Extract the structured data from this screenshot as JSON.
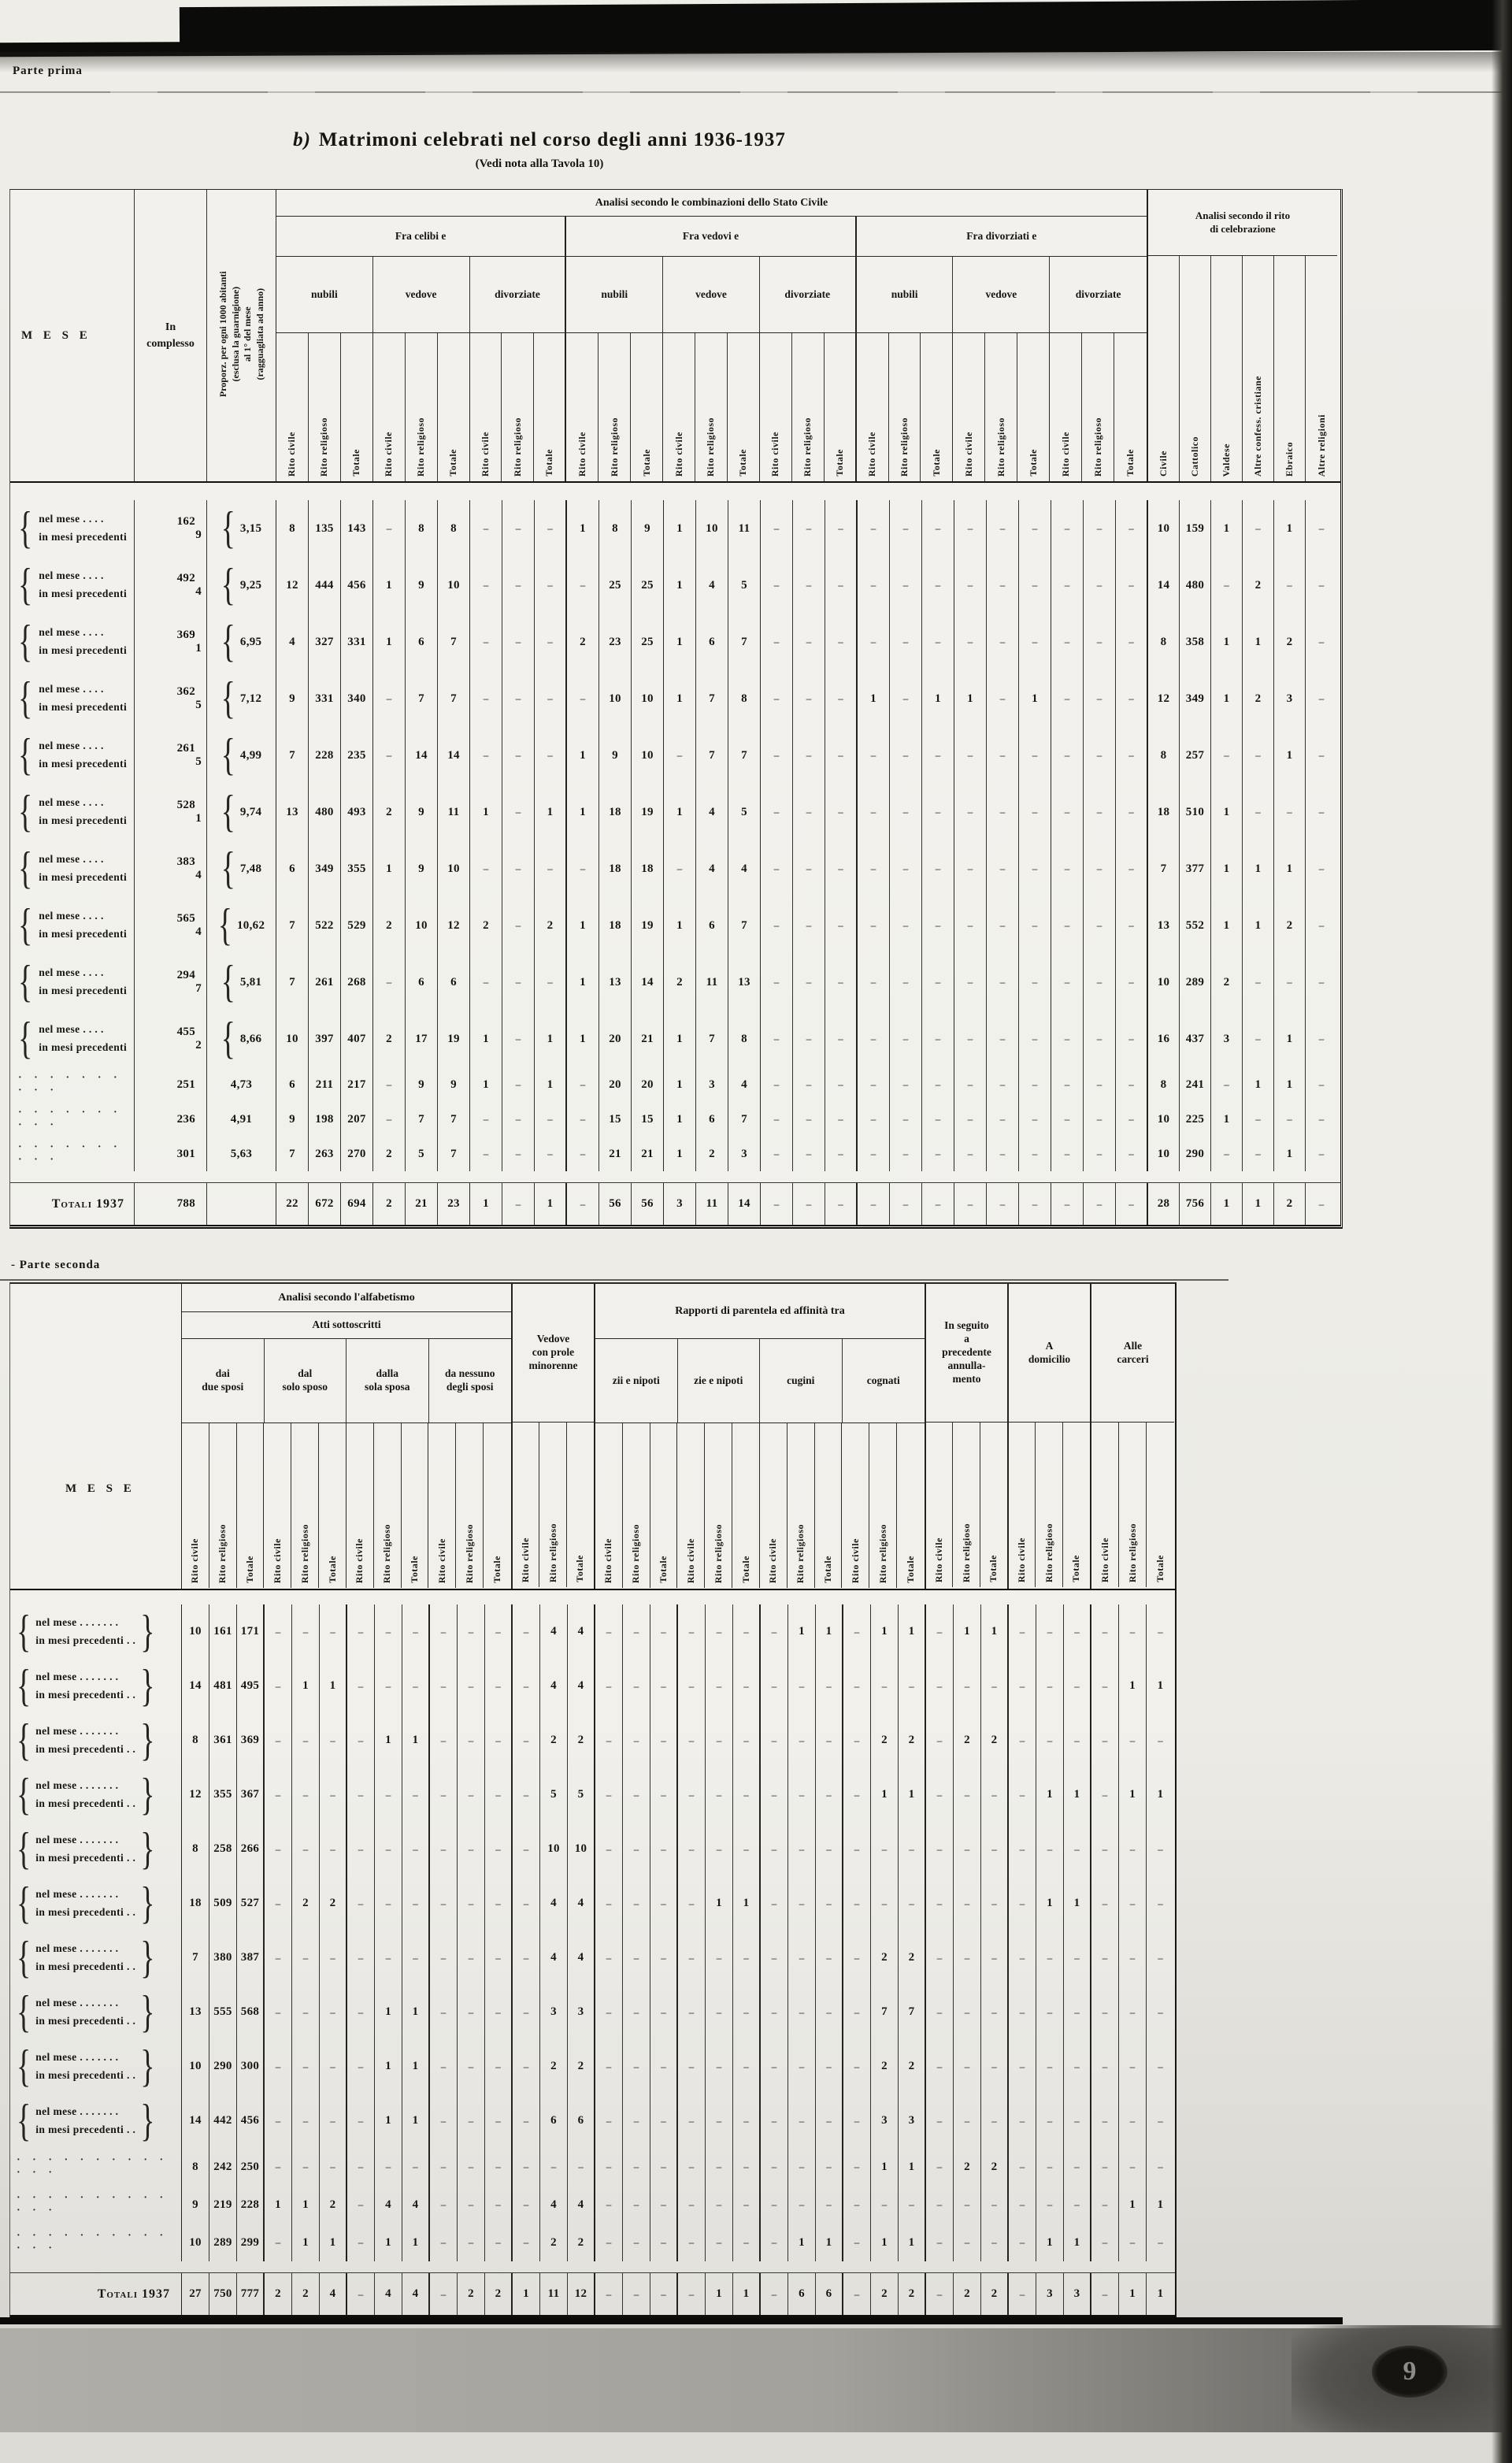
{
  "page": {
    "section_top": "Parte prima",
    "section_mid": "- Parte seconda",
    "title_prefix": "b)",
    "title_main": "Matrimoni celebrati nel corso degli anni 1936-1937",
    "subtitle": "(Vedi nota alla Tavola 10)",
    "page_number": "9"
  },
  "table1": {
    "mese_header": "M E S E",
    "complesso_header": "In\ncomplesso",
    "proporz_header": [
      "Proporz. per ogni 1000 abitanti",
      "(esclusa la guarnigione)",
      "al 1° del mese",
      "(ragguagliata ad anno)"
    ],
    "stato_title": "Analisi secondo le combinazioni dello Stato Civile",
    "stato_groups": [
      "Fra celibi e",
      "Fra vedovi e",
      "Fra divorziati e"
    ],
    "stato_subgroups": [
      "nubili",
      "vedove",
      "divorziate"
    ],
    "rite_columns": [
      "Rito civile",
      "Rito religioso",
      "Totale"
    ],
    "rito_title": "Analisi secondo il rito\ndi celebrazione",
    "rito_columns": [
      "Civile",
      "Cattolico",
      "Valdese",
      "Altre confess. cristiane",
      "Ebraico",
      "Altre religioni"
    ],
    "row_label_line1": "nel mese  .  .  .  .",
    "row_label_line2": "in mesi precedenti",
    "dotted_label": "· · · · · · · · · ·",
    "total_label": "Totali 1937",
    "rows": [
      {
        "complesso": [
          "162",
          "9"
        ],
        "prop": "3,15",
        "cells": [
          "8",
          "135",
          "143",
          "-",
          "8",
          "8",
          "-",
          "-",
          "-",
          "1",
          "8",
          "9",
          "1",
          "10",
          "11",
          "-",
          "-",
          "-",
          "-",
          "-",
          "-",
          "-",
          "-",
          "-",
          "-",
          "-",
          "-"
        ],
        "rito": [
          "10",
          "159",
          "1",
          "-",
          "1",
          "-"
        ]
      },
      {
        "complesso": [
          "492",
          "4"
        ],
        "prop": "9,25",
        "cells": [
          "12",
          "444",
          "456",
          "1",
          "9",
          "10",
          "-",
          "-",
          "-",
          "-",
          "25",
          "25",
          "1",
          "4",
          "5",
          "-",
          "-",
          "-",
          "-",
          "-",
          "-",
          "-",
          "-",
          "-",
          "-",
          "-",
          "-"
        ],
        "rito": [
          "14",
          "480",
          "-",
          "2",
          "-",
          "-"
        ]
      },
      {
        "complesso": [
          "369",
          "1"
        ],
        "prop": "6,95",
        "cells": [
          "4",
          "327",
          "331",
          "1",
          "6",
          "7",
          "-",
          "-",
          "-",
          "2",
          "23",
          "25",
          "1",
          "6",
          "7",
          "-",
          "-",
          "-",
          "-",
          "-",
          "-",
          "-",
          "-",
          "-",
          "-",
          "-",
          "-"
        ],
        "rito": [
          "8",
          "358",
          "1",
          "1",
          "2",
          "-"
        ]
      },
      {
        "complesso": [
          "362",
          "5"
        ],
        "prop": "7,12",
        "cells": [
          "9",
          "331",
          "340",
          "-",
          "7",
          "7",
          "-",
          "-",
          "-",
          "-",
          "10",
          "10",
          "1",
          "7",
          "8",
          "-",
          "-",
          "-",
          "1",
          "-",
          "1",
          "1",
          "-",
          "1",
          "-",
          "-",
          "-"
        ],
        "rito": [
          "12",
          "349",
          "1",
          "2",
          "3",
          "-"
        ]
      },
      {
        "complesso": [
          "261",
          "5"
        ],
        "prop": "4,99",
        "cells": [
          "7",
          "228",
          "235",
          "-",
          "14",
          "14",
          "-",
          "-",
          "-",
          "1",
          "9",
          "10",
          "-",
          "7",
          "7",
          "-",
          "-",
          "-",
          "-",
          "-",
          "-",
          "-",
          "-",
          "-",
          "-",
          "-",
          "-"
        ],
        "rito": [
          "8",
          "257",
          "-",
          "-",
          "1",
          "-"
        ]
      },
      {
        "complesso": [
          "528",
          "1"
        ],
        "prop": "9,74",
        "cells": [
          "13",
          "480",
          "493",
          "2",
          "9",
          "11",
          "1",
          "-",
          "1",
          "1",
          "18",
          "19",
          "1",
          "4",
          "5",
          "-",
          "-",
          "-",
          "-",
          "-",
          "-",
          "-",
          "-",
          "-",
          "-",
          "-",
          "-"
        ],
        "rito": [
          "18",
          "510",
          "1",
          "-",
          "-",
          "-"
        ]
      },
      {
        "complesso": [
          "383",
          "4"
        ],
        "prop": "7,48",
        "cells": [
          "6",
          "349",
          "355",
          "1",
          "9",
          "10",
          "-",
          "-",
          "-",
          "-",
          "18",
          "18",
          "-",
          "4",
          "4",
          "-",
          "-",
          "-",
          "-",
          "-",
          "-",
          "-",
          "-",
          "-",
          "-",
          "-",
          "-"
        ],
        "rito": [
          "7",
          "377",
          "1",
          "1",
          "1",
          "-"
        ]
      },
      {
        "complesso": [
          "565",
          "4"
        ],
        "prop": "10,62",
        "cells": [
          "7",
          "522",
          "529",
          "2",
          "10",
          "12",
          "2",
          "-",
          "2",
          "1",
          "18",
          "19",
          "1",
          "6",
          "7",
          "-",
          "-",
          "-",
          "-",
          "-",
          "-",
          "-",
          "-",
          "-",
          "-",
          "-",
          "-"
        ],
        "rito": [
          "13",
          "552",
          "1",
          "1",
          "2",
          "-"
        ]
      },
      {
        "complesso": [
          "294",
          "7"
        ],
        "prop": "5,81",
        "cells": [
          "7",
          "261",
          "268",
          "-",
          "6",
          "6",
          "-",
          "-",
          "-",
          "1",
          "13",
          "14",
          "2",
          "11",
          "13",
          "-",
          "-",
          "-",
          "-",
          "-",
          "-",
          "-",
          "-",
          "-",
          "-",
          "-",
          "-"
        ],
        "rito": [
          "10",
          "289",
          "2",
          "-",
          "-",
          "-"
        ]
      },
      {
        "complesso": [
          "455",
          "2"
        ],
        "prop": "8,66",
        "cells": [
          "10",
          "397",
          "407",
          "2",
          "17",
          "19",
          "1",
          "-",
          "1",
          "1",
          "20",
          "21",
          "1",
          "7",
          "8",
          "-",
          "-",
          "-",
          "-",
          "-",
          "-",
          "-",
          "-",
          "-",
          "-",
          "-",
          "-"
        ],
        "rito": [
          "16",
          "437",
          "3",
          "-",
          "1",
          "-"
        ]
      }
    ],
    "dotted_rows": [
      {
        "complesso": "251",
        "prop": "4,73",
        "cells": [
          "6",
          "211",
          "217",
          "-",
          "9",
          "9",
          "1",
          "-",
          "1",
          "-",
          "20",
          "20",
          "1",
          "3",
          "4",
          "-",
          "-",
          "-",
          "-",
          "-",
          "-",
          "-",
          "-",
          "-",
          "-",
          "-",
          "-"
        ],
        "rito": [
          "8",
          "241",
          "-",
          "1",
          "1",
          "-"
        ]
      },
      {
        "complesso": "236",
        "prop": "4,91",
        "cells": [
          "9",
          "198",
          "207",
          "-",
          "7",
          "7",
          "-",
          "-",
          "-",
          "-",
          "15",
          "15",
          "1",
          "6",
          "7",
          "-",
          "-",
          "-",
          "-",
          "-",
          "-",
          "-",
          "-",
          "-",
          "-",
          "-",
          "-"
        ],
        "rito": [
          "10",
          "225",
          "1",
          "-",
          "-",
          "-"
        ]
      },
      {
        "complesso": "301",
        "prop": "5,63",
        "cells": [
          "7",
          "263",
          "270",
          "2",
          "5",
          "7",
          "-",
          "-",
          "-",
          "-",
          "21",
          "21",
          "1",
          "2",
          "3",
          "-",
          "-",
          "-",
          "-",
          "-",
          "-",
          "-",
          "-",
          "-",
          "-",
          "-",
          "-"
        ],
        "rito": [
          "10",
          "290",
          "-",
          "-",
          "1",
          "-"
        ]
      }
    ],
    "total_row": {
      "complesso": "788",
      "prop": "",
      "cells": [
        "22",
        "672",
        "694",
        "2",
        "21",
        "23",
        "1",
        "-",
        "1",
        "-",
        "56",
        "56",
        "3",
        "11",
        "14",
        "-",
        "-",
        "-",
        "-",
        "-",
        "-",
        "-",
        "-",
        "-",
        "-",
        "-",
        "-"
      ],
      "rito": [
        "28",
        "756",
        "1",
        "1",
        "2",
        "-"
      ]
    }
  },
  "table2": {
    "mese_header": "M E S E",
    "alfa_title": "Analisi secondo l'alfabetismo",
    "atti_title": "Atti sottoscritti",
    "atti_groups": [
      "dai\ndue sposi",
      "dal\nsolo sposo",
      "dalla\nsola sposa",
      "da nessuno\ndegli sposi"
    ],
    "vedove_label": "Vedove\ncon prole\nminorenne",
    "parentela_title": "Rapporti di parentela ed affinità tra",
    "parentela_groups": [
      "zii e nipoti",
      "zie e nipoti",
      "cugini",
      "cognati"
    ],
    "annullamento_label": "In seguito\na\nprecedente\nannulla-\nmento",
    "domicilio_label": "A\ndomicilio",
    "carceri_label": "Alle\ncarceri",
    "rite_columns": [
      "Rito civile",
      "Rito religioso",
      "Totale"
    ],
    "row_label_line1": "nel mese  .  .  .  .  .  .  .",
    "row_label_line2": "in mesi precedenti   .  .",
    "dotted_label": "· · · · · · · · · · · · ·",
    "total_label": "Totali 1937",
    "rows": [
      {
        "cells": [
          "10",
          "161",
          "171",
          "-",
          "-",
          "-",
          "-",
          "-",
          "-",
          "-",
          "-",
          "-",
          "-",
          "4",
          "4",
          "-",
          "-",
          "-",
          "-",
          "-",
          "-",
          "-",
          "1",
          "1",
          "-",
          "1",
          "1",
          "-",
          "1",
          "1",
          "-",
          "-",
          "-",
          "-",
          "-",
          "-"
        ]
      },
      {
        "cells": [
          "14",
          "481",
          "495",
          "-",
          "1",
          "1",
          "-",
          "-",
          "-",
          "-",
          "-",
          "-",
          "-",
          "4",
          "4",
          "-",
          "-",
          "-",
          "-",
          "-",
          "-",
          "-",
          "-",
          "-",
          "-",
          "-",
          "-",
          "-",
          "-",
          "-",
          "-",
          "-",
          "-",
          "-",
          "1",
          "1"
        ]
      },
      {
        "cells": [
          "8",
          "361",
          "369",
          "-",
          "-",
          "-",
          "-",
          "1",
          "1",
          "-",
          "-",
          "-",
          "-",
          "2",
          "2",
          "-",
          "-",
          "-",
          "-",
          "-",
          "-",
          "-",
          "-",
          "-",
          "-",
          "2",
          "2",
          "-",
          "2",
          "2",
          "-",
          "-",
          "-",
          "-",
          "-",
          "-"
        ]
      },
      {
        "cells": [
          "12",
          "355",
          "367",
          "-",
          "-",
          "-",
          "-",
          "-",
          "-",
          "-",
          "-",
          "-",
          "-",
          "5",
          "5",
          "-",
          "-",
          "-",
          "-",
          "-",
          "-",
          "-",
          "-",
          "-",
          "-",
          "1",
          "1",
          "-",
          "-",
          "-",
          "-",
          "1",
          "1",
          "-",
          "1",
          "1"
        ]
      },
      {
        "cells": [
          "8",
          "258",
          "266",
          "-",
          "-",
          "-",
          "-",
          "-",
          "-",
          "-",
          "-",
          "-",
          "-",
          "10",
          "10",
          "-",
          "-",
          "-",
          "-",
          "-",
          "-",
          "-",
          "-",
          "-",
          "-",
          "-",
          "-",
          "-",
          "-",
          "-",
          "-",
          "-",
          "-",
          "-",
          "-",
          "-"
        ]
      },
      {
        "cells": [
          "18",
          "509",
          "527",
          "-",
          "2",
          "2",
          "-",
          "-",
          "-",
          "-",
          "-",
          "-",
          "-",
          "4",
          "4",
          "-",
          "-",
          "-",
          "-",
          "1",
          "1",
          "-",
          "-",
          "-",
          "-",
          "-",
          "-",
          "-",
          "-",
          "-",
          "-",
          "1",
          "1",
          "-",
          "-",
          "-"
        ]
      },
      {
        "cells": [
          "7",
          "380",
          "387",
          "-",
          "-",
          "-",
          "-",
          "-",
          "-",
          "-",
          "-",
          "-",
          "-",
          "4",
          "4",
          "-",
          "-",
          "-",
          "-",
          "-",
          "-",
          "-",
          "-",
          "-",
          "-",
          "2",
          "2",
          "-",
          "-",
          "-",
          "-",
          "-",
          "-",
          "-",
          "-",
          "-"
        ]
      },
      {
        "cells": [
          "13",
          "555",
          "568",
          "-",
          "-",
          "-",
          "-",
          "1",
          "1",
          "-",
          "-",
          "-",
          "-",
          "3",
          "3",
          "-",
          "-",
          "-",
          "-",
          "-",
          "-",
          "-",
          "-",
          "-",
          "-",
          "7",
          "7",
          "-",
          "-",
          "-",
          "-",
          "-",
          "-",
          "-",
          "-",
          "-"
        ]
      },
      {
        "cells": [
          "10",
          "290",
          "300",
          "-",
          "-",
          "-",
          "-",
          "1",
          "1",
          "-",
          "-",
          "-",
          "-",
          "2",
          "2",
          "-",
          "-",
          "-",
          "-",
          "-",
          "-",
          "-",
          "-",
          "-",
          "-",
          "2",
          "2",
          "-",
          "-",
          "-",
          "-",
          "-",
          "-",
          "-",
          "-",
          "-"
        ]
      },
      {
        "cells": [
          "14",
          "442",
          "456",
          "-",
          "-",
          "-",
          "-",
          "1",
          "1",
          "-",
          "-",
          "-",
          "-",
          "6",
          "6",
          "-",
          "-",
          "-",
          "-",
          "-",
          "-",
          "-",
          "-",
          "-",
          "-",
          "3",
          "3",
          "-",
          "-",
          "-",
          "-",
          "-",
          "-",
          "-",
          "-",
          "-"
        ]
      }
    ],
    "dotted_rows": [
      {
        "cells": [
          "8",
          "242",
          "250",
          "-",
          "-",
          "-",
          "-",
          "-",
          "-",
          "-",
          "-",
          "-",
          "-",
          "-",
          "-",
          "-",
          "-",
          "-",
          "-",
          "-",
          "-",
          "-",
          "-",
          "-",
          "-",
          "1",
          "1",
          "-",
          "2",
          "2",
          "-",
          "-",
          "-",
          "-",
          "-",
          "-"
        ]
      },
      {
        "cells": [
          "9",
          "219",
          "228",
          "1",
          "1",
          "2",
          "-",
          "4",
          "4",
          "-",
          "-",
          "-",
          "-",
          "4",
          "4",
          "-",
          "-",
          "-",
          "-",
          "-",
          "-",
          "-",
          "-",
          "-",
          "-",
          "-",
          "-",
          "-",
          "-",
          "-",
          "-",
          "-",
          "-",
          "-",
          "1",
          "1"
        ]
      },
      {
        "cells": [
          "10",
          "289",
          "299",
          "-",
          "1",
          "1",
          "-",
          "1",
          "1",
          "-",
          "-",
          "-",
          "-",
          "2",
          "2",
          "-",
          "-",
          "-",
          "-",
          "-",
          "-",
          "-",
          "1",
          "1",
          "-",
          "1",
          "1",
          "-",
          "-",
          "-",
          "-",
          "1",
          "1",
          "-",
          "-",
          "-"
        ]
      }
    ],
    "total_row": {
      "cells": [
        "27",
        "750",
        "777",
        "2",
        "2",
        "4",
        "-",
        "4",
        "4",
        "-",
        "2",
        "2",
        "1",
        "11",
        "12",
        "-",
        "-",
        "-",
        "-",
        "1",
        "1",
        "-",
        "6",
        "6",
        "-",
        "2",
        "2",
        "-",
        "2",
        "2",
        "-",
        "3",
        "3",
        "-",
        "1",
        "1"
      ]
    }
  }
}
